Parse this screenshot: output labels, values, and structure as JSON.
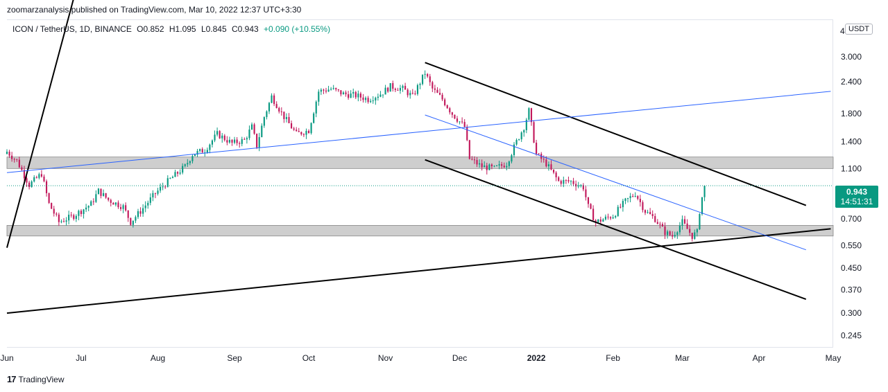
{
  "header": {
    "published": "zoomarzanalysis published on TradingView.com, Mar 10, 2022 12:37 UTC+3:30"
  },
  "symbol": {
    "pair": "ICON / TetherUS, 1D, BINANCE",
    "open": "O0.852",
    "high": "H1.095",
    "low": "L0.845",
    "close": "C0.943",
    "change": "+0.090 (+10.55%)"
  },
  "currency_button": "USDT",
  "axis_top_partial": "4",
  "last_price": {
    "value": "0.943",
    "countdown": "14:51:31"
  },
  "footer": {
    "brand": "TradingView",
    "logo_glyph": "17"
  },
  "colors": {
    "up": "#089981",
    "down": "#c2185b",
    "zone": "#c9c9c9",
    "trend_black": "#000000",
    "trend_blue": "#2962ff"
  },
  "chart_data": {
    "type": "candlestick",
    "scale": "log",
    "ylim": [
      0.22,
      4.2
    ],
    "y_ticks": [
      {
        "value": 3.0,
        "label": "3.000"
      },
      {
        "value": 2.4,
        "label": "2.400"
      },
      {
        "value": 1.8,
        "label": "1.800"
      },
      {
        "value": 1.4,
        "label": "1.400"
      },
      {
        "value": 1.1,
        "label": "1.100"
      },
      {
        "value": 0.7,
        "label": "0.700"
      },
      {
        "value": 0.55,
        "label": "0.550"
      },
      {
        "value": 0.45,
        "label": "0.450"
      },
      {
        "value": 0.37,
        "label": "0.370"
      },
      {
        "value": 0.3,
        "label": "0.300"
      },
      {
        "value": 0.245,
        "label": "0.245"
      }
    ],
    "x_range": [
      "2021-06-01",
      "2022-05-01"
    ],
    "x_ticks": [
      {
        "date": "2021-06-01",
        "label": "Jun"
      },
      {
        "date": "2021-07-01",
        "label": "Jul"
      },
      {
        "date": "2021-08-01",
        "label": "Aug"
      },
      {
        "date": "2021-09-01",
        "label": "Sep"
      },
      {
        "date": "2021-10-01",
        "label": "Oct"
      },
      {
        "date": "2021-11-01",
        "label": "Nov"
      },
      {
        "date": "2021-12-01",
        "label": "Dec"
      },
      {
        "date": "2022-01-01",
        "label": "2022"
      },
      {
        "date": "2022-02-01",
        "label": "Feb"
      },
      {
        "date": "2022-03-01",
        "label": "Mar"
      },
      {
        "date": "2022-04-01",
        "label": "Apr"
      },
      {
        "date": "2022-05-01",
        "label": "May"
      }
    ],
    "close_anchors": [
      [
        "2021-06-01",
        1.28
      ],
      [
        "2021-06-05",
        1.18
      ],
      [
        "2021-06-10",
        0.95
      ],
      [
        "2021-06-15",
        1.05
      ],
      [
        "2021-06-18",
        0.8
      ],
      [
        "2021-06-22",
        0.68
      ],
      [
        "2021-06-28",
        0.72
      ],
      [
        "2021-07-05",
        0.8
      ],
      [
        "2021-07-08",
        0.9
      ],
      [
        "2021-07-12",
        0.83
      ],
      [
        "2021-07-18",
        0.78
      ],
      [
        "2021-07-21",
        0.68
      ],
      [
        "2021-07-25",
        0.75
      ],
      [
        "2021-07-31",
        0.88
      ],
      [
        "2021-08-05",
        0.98
      ],
      [
        "2021-08-12",
        1.12
      ],
      [
        "2021-08-15",
        1.25
      ],
      [
        "2021-08-20",
        1.3
      ],
      [
        "2021-08-25",
        1.5
      ],
      [
        "2021-08-31",
        1.38
      ],
      [
        "2021-09-05",
        1.42
      ],
      [
        "2021-09-08",
        1.6
      ],
      [
        "2021-09-10",
        1.35
      ],
      [
        "2021-09-13",
        1.75
      ],
      [
        "2021-09-16",
        2.1
      ],
      [
        "2021-09-21",
        1.75
      ],
      [
        "2021-09-26",
        1.5
      ],
      [
        "2021-10-01",
        1.55
      ],
      [
        "2021-10-05",
        2.2
      ],
      [
        "2021-10-10",
        2.25
      ],
      [
        "2021-10-15",
        2.15
      ],
      [
        "2021-10-20",
        2.12
      ],
      [
        "2021-10-25",
        2.05
      ],
      [
        "2021-10-30",
        2.15
      ],
      [
        "2021-11-03",
        2.3
      ],
      [
        "2021-11-08",
        2.25
      ],
      [
        "2021-11-12",
        2.1
      ],
      [
        "2021-11-17",
        2.6
      ],
      [
        "2021-11-20",
        2.25
      ],
      [
        "2021-11-24",
        2.05
      ],
      [
        "2021-11-28",
        1.8
      ],
      [
        "2021-12-03",
        1.6
      ],
      [
        "2021-12-05",
        1.2
      ],
      [
        "2021-12-10",
        1.12
      ],
      [
        "2021-12-15",
        1.1
      ],
      [
        "2021-12-20",
        1.15
      ],
      [
        "2021-12-24",
        1.4
      ],
      [
        "2021-12-27",
        1.6
      ],
      [
        "2021-12-29",
        1.85
      ],
      [
        "2022-01-01",
        1.25
      ],
      [
        "2022-01-05",
        1.15
      ],
      [
        "2022-01-10",
        0.98
      ],
      [
        "2022-01-15",
        0.98
      ],
      [
        "2022-01-20",
        0.93
      ],
      [
        "2022-01-22",
        0.78
      ],
      [
        "2022-01-25",
        0.68
      ],
      [
        "2022-02-01",
        0.72
      ],
      [
        "2022-02-06",
        0.82
      ],
      [
        "2022-02-10",
        0.88
      ],
      [
        "2022-02-14",
        0.75
      ],
      [
        "2022-02-18",
        0.7
      ],
      [
        "2022-02-22",
        0.62
      ],
      [
        "2022-02-25",
        0.6
      ],
      [
        "2022-03-01",
        0.68
      ],
      [
        "2022-03-05",
        0.6
      ],
      [
        "2022-03-07",
        0.62
      ],
      [
        "2022-03-08",
        0.75
      ],
      [
        "2022-03-09",
        0.85
      ],
      [
        "2022-03-10",
        0.943
      ]
    ],
    "last_close": 0.943,
    "zones": [
      {
        "from": 1.1,
        "to": 1.22
      },
      {
        "from": 0.6,
        "to": 0.66
      }
    ],
    "trendlines": [
      {
        "color": "black",
        "points": [
          [
            "2021-06-01",
            0.54
          ],
          [
            "2021-06-30",
            6.0
          ]
        ]
      },
      {
        "color": "black",
        "points": [
          [
            "2021-11-17",
            2.85
          ],
          [
            "2022-04-20",
            0.79
          ]
        ]
      },
      {
        "color": "black",
        "points": [
          [
            "2021-11-17",
            1.19
          ],
          [
            "2022-04-20",
            0.34
          ]
        ]
      },
      {
        "color": "black",
        "points": [
          [
            "2021-06-01",
            0.3
          ],
          [
            "2022-04-30",
            0.64
          ]
        ]
      },
      {
        "color": "blue",
        "points": [
          [
            "2021-06-01",
            1.06
          ],
          [
            "2022-04-30",
            2.2
          ]
        ]
      },
      {
        "color": "blue",
        "points": [
          [
            "2021-11-17",
            1.78
          ],
          [
            "2022-04-20",
            0.53
          ]
        ]
      }
    ]
  }
}
